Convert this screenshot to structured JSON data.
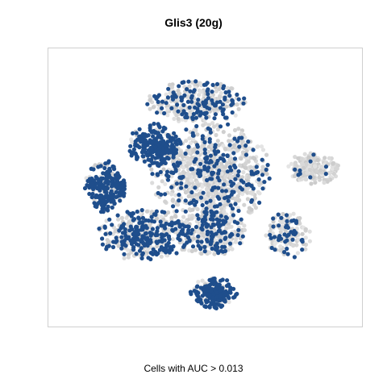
{
  "chart_data": {
    "type": "scatter",
    "title": "Glis3 (20g)",
    "caption": "Cells with AUC > 0.013",
    "xlabel": "",
    "ylabel": "",
    "axes_visible": false,
    "grid": false,
    "legend": "none",
    "colors": {
      "highlighted": "#1f4e8c",
      "background_cells": "#d3d3d3",
      "panel_border": "#cfcfcf"
    },
    "clusters": [
      {
        "label": "main-top-left",
        "cx": 0.33,
        "cy": 0.66,
        "rx": 0.09,
        "ry": 0.08,
        "n": 260,
        "p_high": 0.85
      },
      {
        "label": "main-upper",
        "cx": 0.47,
        "cy": 0.82,
        "rx": 0.17,
        "ry": 0.08,
        "n": 340,
        "p_high": 0.35
      },
      {
        "label": "main-center",
        "cx": 0.52,
        "cy": 0.55,
        "rx": 0.2,
        "ry": 0.2,
        "n": 900,
        "p_high": 0.25
      },
      {
        "label": "main-left",
        "cx": 0.17,
        "cy": 0.5,
        "rx": 0.07,
        "ry": 0.1,
        "n": 260,
        "p_high": 0.7
      },
      {
        "label": "main-lower-left",
        "cx": 0.3,
        "cy": 0.32,
        "rx": 0.16,
        "ry": 0.1,
        "n": 420,
        "p_high": 0.55
      },
      {
        "label": "main-lower-right",
        "cx": 0.52,
        "cy": 0.33,
        "rx": 0.12,
        "ry": 0.09,
        "n": 320,
        "p_high": 0.35
      },
      {
        "label": "bottom-blob",
        "cx": 0.53,
        "cy": 0.1,
        "rx": 0.08,
        "ry": 0.06,
        "n": 230,
        "p_high": 0.85
      },
      {
        "label": "right-island",
        "cx": 0.86,
        "cy": 0.57,
        "rx": 0.09,
        "ry": 0.06,
        "n": 200,
        "p_high": 0.06
      },
      {
        "label": "right-lower",
        "cx": 0.78,
        "cy": 0.32,
        "rx": 0.08,
        "ry": 0.09,
        "n": 150,
        "p_high": 0.25
      }
    ]
  }
}
